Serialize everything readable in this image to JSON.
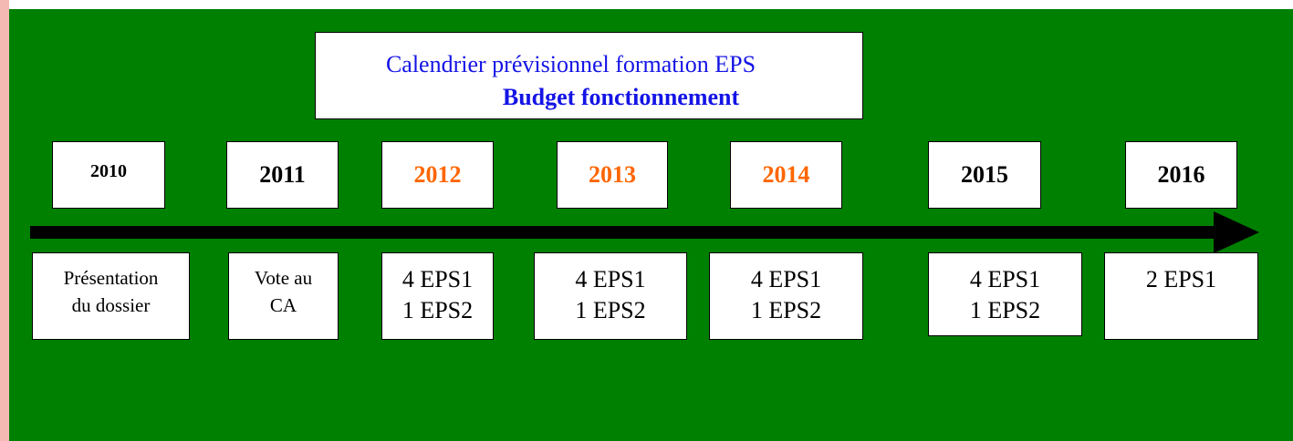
{
  "header": {
    "title": "Calendrier prévisionnel formation EPS",
    "subtitle": "Budget fonctionnement"
  },
  "years": [
    {
      "label": "2010",
      "color": "#000000"
    },
    {
      "label": "2011",
      "color": "#000000"
    },
    {
      "label": "2012",
      "color": "#ff6600"
    },
    {
      "label": "2013",
      "color": "#ff6600"
    },
    {
      "label": "2014",
      "color": "#ff6600"
    },
    {
      "label": "2015",
      "color": "#000000"
    },
    {
      "label": "2016",
      "color": "#000000"
    }
  ],
  "steps": [
    {
      "lines": [
        "Présentation",
        "du dossier"
      ]
    },
    {
      "lines": [
        "Vote au",
        "CA"
      ]
    },
    {
      "lines": [
        "4 EPS1",
        "1 EPS2"
      ]
    },
    {
      "lines": [
        "4 EPS1",
        "1 EPS2"
      ]
    },
    {
      "lines": [
        "4 EPS1",
        "1 EPS2"
      ]
    },
    {
      "lines": [
        "4 EPS1",
        "1 EPS2"
      ]
    },
    {
      "lines": [
        "2 EPS1"
      ]
    }
  ]
}
